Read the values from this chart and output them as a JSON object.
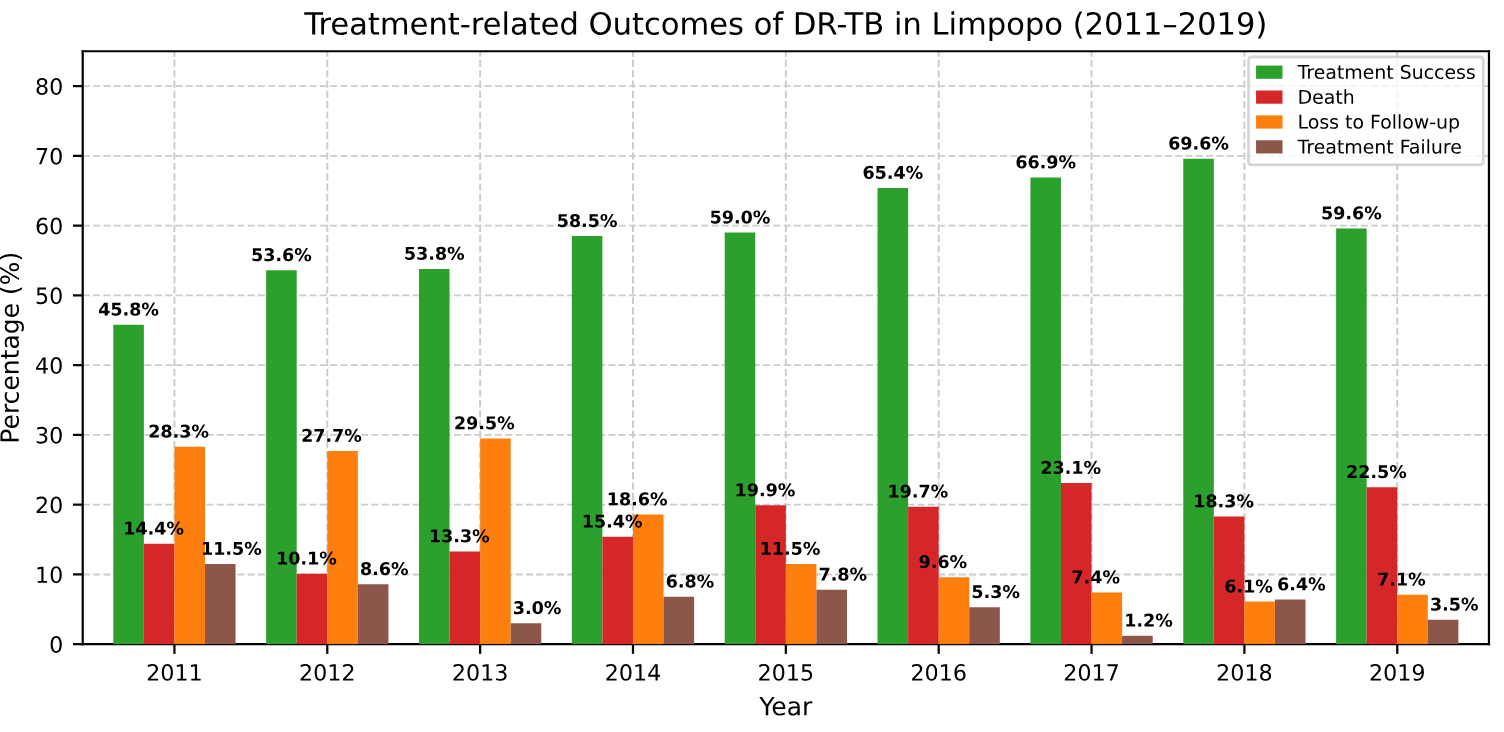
{
  "chart_data": {
    "type": "bar",
    "title": "Treatment-related Outcomes of DR-TB in Limpopo (2011–2019)",
    "xlabel": "Year",
    "ylabel": "Percentage (%)",
    "categories": [
      "2011",
      "2012",
      "2013",
      "2014",
      "2015",
      "2016",
      "2017",
      "2018",
      "2019"
    ],
    "series": [
      {
        "name": "Treatment Success",
        "color": "#2ca02c",
        "values": [
          45.8,
          53.6,
          53.8,
          58.5,
          59.0,
          65.4,
          66.9,
          69.6,
          59.6
        ],
        "value_labels": [
          "45.8%",
          "53.6%",
          "53.8%",
          "58.5%",
          "59.0%",
          "65.4%",
          "66.9%",
          "69.6%",
          "59.6%"
        ]
      },
      {
        "name": "Death",
        "color": "#d62728",
        "values": [
          14.4,
          10.1,
          13.3,
          15.4,
          19.9,
          19.7,
          23.1,
          18.3,
          22.5
        ],
        "value_labels": [
          "14.4%",
          "10.1%",
          "13.3%",
          "15.4%",
          "19.9%",
          "19.7%",
          "23.1%",
          "18.3%",
          "22.5%"
        ]
      },
      {
        "name": "Loss to Follow-up",
        "color": "#ff7f0e",
        "values": [
          28.3,
          27.7,
          29.5,
          18.6,
          11.5,
          9.6,
          7.4,
          6.1,
          7.1
        ],
        "value_labels": [
          "28.3%",
          "27.7%",
          "29.5%",
          "18.6%",
          "11.5%",
          "9.6%",
          "7.4%",
          "6.1%",
          "7.1%"
        ]
      },
      {
        "name": "Treatment Failure",
        "color": "#8c564b",
        "values": [
          11.5,
          8.6,
          3.0,
          6.8,
          7.8,
          5.3,
          1.2,
          6.4,
          3.5
        ],
        "value_labels": [
          "11.5%",
          "8.6%",
          "3.0%",
          "6.8%",
          "7.8%",
          "5.3%",
          "1.2%",
          "6.4%",
          "3.5%"
        ]
      }
    ],
    "ylim": [
      0,
      85
    ],
    "yticks": [
      0,
      10,
      20,
      30,
      40,
      50,
      60,
      70,
      80
    ],
    "grid": true,
    "legend": "top right"
  }
}
